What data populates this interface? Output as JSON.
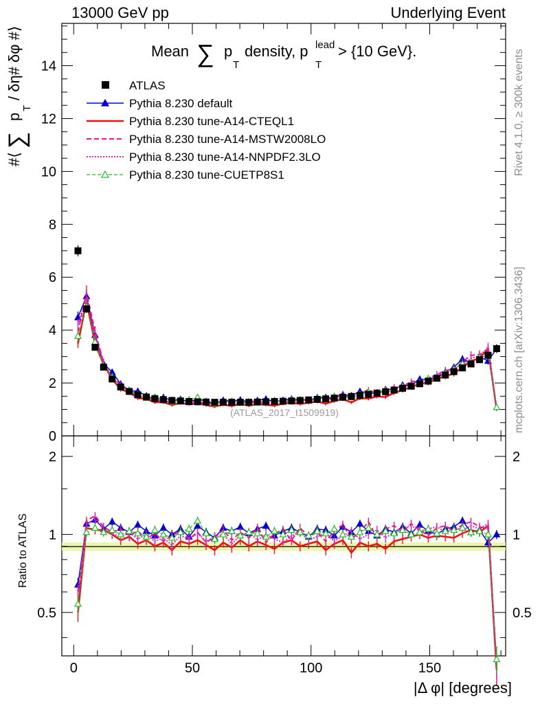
{
  "header": {
    "left": "13000 GeV pp",
    "right": "Underlying Event"
  },
  "side_labels": {
    "rivet": "Rivet 4.1.0, ≥ 300k events",
    "mcplots": "mcplots.cern.ch [arXiv:1306.3436]"
  },
  "chart_data": {
    "type": "line",
    "title": {
      "prefix": "Mean",
      "sum": "∑",
      "p": "p",
      "sub_T": "T",
      "mid": "density, p",
      "sup_lead": "lead",
      "suffix": "> {10 GeV}."
    },
    "ylabel": {
      "open": "#⟨",
      "sum": "∑",
      "p": "p",
      "sub_T": "T",
      "rest": "/ δη# δφ #⟩"
    },
    "ratio_ylabel": "Ratio to ATLAS",
    "xlabel": "|Δ φ| [degrees]",
    "watermark": "(ATLAS_2017_I1509919)",
    "xlim": [
      -5,
      182
    ],
    "ylim": [
      0,
      15.6
    ],
    "ratio_ylim": [
      0.34,
      2.4
    ],
    "xticks": [
      "0",
      "50",
      "100",
      "150"
    ],
    "yticks": [
      "0",
      "2",
      "4",
      "6",
      "8",
      "10",
      "12",
      "14"
    ],
    "ratio_yticks": [
      "0.5",
      "1",
      "2"
    ],
    "x": [
      1.8,
      5.4,
      9,
      12.6,
      16.2,
      19.8,
      23.4,
      27,
      30.6,
      34.2,
      37.8,
      41.4,
      45,
      48.6,
      52.2,
      55.8,
      59.4,
      63,
      66.6,
      70.2,
      73.8,
      77.4,
      81,
      84.6,
      88.2,
      91.8,
      95.4,
      99,
      102.6,
      106.2,
      109.8,
      113.4,
      117,
      120.6,
      124.2,
      127.8,
      131.4,
      135,
      138.6,
      142.2,
      145.8,
      149.4,
      153,
      156.6,
      160.2,
      163.8,
      167.4,
      171,
      174.6,
      178.2
    ],
    "atlas_values": [
      7.0,
      4.8,
      3.35,
      2.6,
      2.15,
      1.85,
      1.68,
      1.55,
      1.47,
      1.41,
      1.37,
      1.34,
      1.32,
      1.3,
      1.29,
      1.28,
      1.27,
      1.27,
      1.27,
      1.27,
      1.27,
      1.28,
      1.29,
      1.3,
      1.31,
      1.32,
      1.34,
      1.36,
      1.38,
      1.4,
      1.43,
      1.46,
      1.49,
      1.53,
      1.57,
      1.62,
      1.67,
      1.73,
      1.8,
      1.88,
      1.97,
      2.07,
      2.18,
      2.3,
      2.43,
      2.57,
      2.72,
      2.88,
      3.05,
      3.3
    ],
    "series": [
      {
        "name": "ATLAS",
        "color": "#000000",
        "style": "marker"
      },
      {
        "name": "Pythia 8.230 default",
        "color": "#0000d0",
        "style": "solid-triangle",
        "ratio": [
          0.64,
          1.1,
          1.14,
          1.05,
          1.12,
          1.06,
          1.02,
          1.09,
          1.03,
          0.99,
          1.06,
          1.0,
          1.05,
          0.98,
          1.08,
          1.02,
          0.97,
          1.06,
          1.03,
          1.07,
          1.01,
          1.05,
          1.08,
          0.99,
          1.03,
          1.06,
          1.02,
          0.98,
          1.05,
          1.04,
          0.99,
          1.07,
          1.02,
          1.1,
          1.03,
          0.99,
          1.05,
          1.02,
          1.07,
          1.01,
          1.09,
          1.03,
          1.0,
          1.05,
          1.07,
          1.13,
          1.02,
          1.04,
          0.93,
          1.0
        ]
      },
      {
        "name": "Pythia 8.230 tune-A14-CTEQL1",
        "color": "#ee1111",
        "style": "solid",
        "ratio": [
          0.5,
          1.06,
          1.04,
          1.04,
          1.0,
          0.95,
          0.98,
          0.92,
          0.95,
          0.9,
          0.93,
          0.87,
          0.94,
          0.92,
          0.95,
          0.91,
          0.87,
          0.93,
          0.89,
          0.95,
          0.9,
          0.94,
          0.91,
          0.88,
          0.93,
          0.95,
          0.9,
          0.92,
          0.94,
          0.87,
          0.92,
          0.95,
          0.85,
          0.93,
          0.9,
          0.92,
          0.88,
          0.94,
          0.96,
          0.98,
          1.0,
          0.97,
          0.99,
          0.98,
          0.97,
          1.01,
          1.04,
          1.02,
          1.08,
          0.3
        ]
      },
      {
        "name": "Pythia 8.230 tune-A14-MSTW2008LO",
        "color": "#ee1188",
        "style": "dashed",
        "ratio": [
          0.56,
          1.13,
          1.18,
          1.07,
          1.02,
          1.05,
          0.99,
          1.03,
          0.96,
          1.01,
          0.94,
          0.99,
          1.03,
          0.96,
          1.02,
          0.93,
          0.98,
          1.04,
          0.95,
          1.02,
          0.97,
          1.06,
          0.93,
          1.01,
          1.04,
          0.95,
          1.06,
          0.98,
          1.02,
          0.94,
          1.03,
          1.09,
          0.96,
          1.02,
          1.12,
          0.97,
          1.05,
          1.08,
          1.02,
          1.1,
          1.04,
          0.99,
          1.06,
          1.08,
          1.03,
          1.09,
          1.12,
          1.07,
          1.05,
          0.32
        ]
      },
      {
        "name": "Pythia 8.230 tune-A14-NNPDF2.3LO",
        "color": "#dd22cc",
        "style": "dotted",
        "ratio": [
          0.6,
          1.09,
          1.15,
          1.05,
          1.01,
          0.98,
          1.02,
          0.96,
          1.0,
          0.94,
          0.97,
          0.91,
          0.99,
          0.96,
          1.01,
          0.94,
          0.98,
          1.0,
          0.92,
          0.99,
          1.02,
          0.95,
          1.0,
          0.96,
          0.93,
          0.99,
          1.02,
          0.95,
          0.98,
          1.01,
          0.94,
          0.99,
          1.03,
          0.96,
          1.0,
          1.04,
          0.97,
          1.02,
          1.06,
          1.08,
          1.03,
          1.05,
          1.07,
          1.02,
          1.06,
          1.04,
          1.08,
          1.05,
          1.1,
          0.31
        ]
      },
      {
        "name": "Pythia 8.230 tune-CUETP8S1",
        "color": "#22bb22",
        "style": "dashed-triangle-open",
        "ratio": [
          0.54,
          1.02,
          1.06,
          1.02,
          1.04,
          1.0,
          1.03,
          1.01,
          0.98,
          1.04,
          1.0,
          0.97,
          1.02,
          1.05,
          1.13,
          1.01,
          0.96,
          1.0,
          1.03,
          0.99,
          1.02,
          1.01,
          0.98,
          1.03,
          1.0,
          1.04,
          1.02,
          0.99,
          1.03,
          1.01,
          1.05,
          1.0,
          0.98,
          1.02,
          1.06,
          1.0,
          1.03,
          1.01,
          1.04,
          1.0,
          1.02,
          1.05,
          1.01,
          1.03,
          1.04,
          1.06,
          1.02,
          1.03,
          1.0,
          0.33
        ]
      }
    ]
  }
}
